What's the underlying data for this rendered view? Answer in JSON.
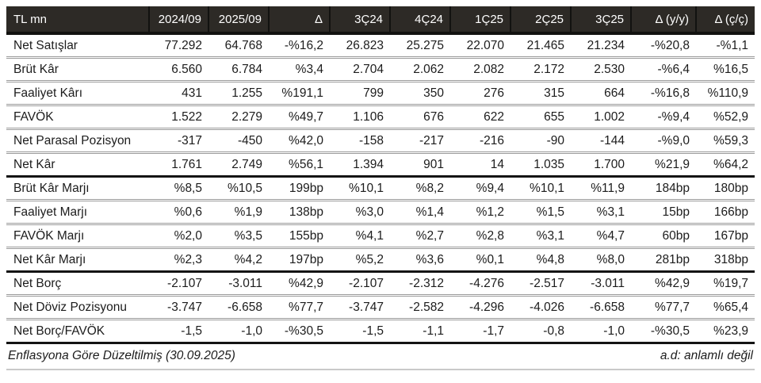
{
  "table": {
    "unit_label": "TL mn",
    "columns": [
      "TL mn",
      "2024/09",
      "2025/09",
      "Δ",
      "3Ç24",
      "4Ç24",
      "1Ç25",
      "2Ç25",
      "3Ç25",
      "Δ (y/y)",
      "Δ (ç/ç)"
    ],
    "sections": [
      {
        "name": "income-statement",
        "rows": [
          {
            "label": "Net Satışlar",
            "values": [
              "77.292",
              "64.768",
              "-%16,2",
              "26.823",
              "25.275",
              "22.070",
              "21.465",
              "21.234",
              "-%20,8",
              "-%1,1"
            ]
          },
          {
            "label": "Brüt Kâr",
            "values": [
              "6.560",
              "6.784",
              "%3,4",
              "2.704",
              "2.062",
              "2.082",
              "2.172",
              "2.530",
              "-%6,4",
              "%16,5"
            ]
          },
          {
            "label": "Faaliyet Kârı",
            "values": [
              "431",
              "1.255",
              "%191,1",
              "799",
              "350",
              "276",
              "315",
              "664",
              "-%16,8",
              "%110,9"
            ]
          },
          {
            "label": "FAVÖK",
            "values": [
              "1.522",
              "2.279",
              "%49,7",
              "1.106",
              "676",
              "622",
              "655",
              "1.002",
              "-%9,4",
              "%52,9"
            ]
          },
          {
            "label": "Net Parasal Pozisyon",
            "values": [
              "-317",
              "-450",
              "%42,0",
              "-158",
              "-217",
              "-216",
              "-90",
              "-144",
              "-%9,0",
              "%59,3"
            ]
          },
          {
            "label": "Net Kâr",
            "values": [
              "1.761",
              "2.749",
              "%56,1",
              "1.394",
              "901",
              "14",
              "1.035",
              "1.700",
              "%21,9",
              "%64,2"
            ]
          }
        ]
      },
      {
        "name": "margins",
        "rows": [
          {
            "label": "Brüt Kâr Marjı",
            "values": [
              "%8,5",
              "%10,5",
              "199bp",
              "%10,1",
              "%8,2",
              "%9,4",
              "%10,1",
              "%11,9",
              "184bp",
              "180bp"
            ]
          },
          {
            "label": "Faaliyet Marjı",
            "values": [
              "%0,6",
              "%1,9",
              "138bp",
              "%3,0",
              "%1,4",
              "%1,2",
              "%1,5",
              "%3,1",
              "15bp",
              "166bp"
            ]
          },
          {
            "label": "FAVÖK Marjı",
            "values": [
              "%2,0",
              "%3,5",
              "155bp",
              "%4,1",
              "%2,7",
              "%2,8",
              "%3,1",
              "%4,7",
              "60bp",
              "167bp"
            ]
          },
          {
            "label": "Net Kâr Marjı",
            "values": [
              "%2,3",
              "%4,2",
              "197bp",
              "%5,2",
              "%3,6",
              "%0,1",
              "%4,8",
              "%8,0",
              "281bp",
              "318bp"
            ]
          }
        ]
      },
      {
        "name": "balance-sheet",
        "rows": [
          {
            "label": "Net Borç",
            "values": [
              "-2.107",
              "-3.011",
              "%42,9",
              "-2.107",
              "-2.312",
              "-4.276",
              "-2.517",
              "-3.011",
              "%42,9",
              "%19,7"
            ]
          },
          {
            "label": "Net Döviz Pozisyonu",
            "values": [
              "-3.747",
              "-6.658",
              "%77,7",
              "-3.747",
              "-2.582",
              "-4.296",
              "-4.026",
              "-6.658",
              "%77,7",
              "%65,4"
            ]
          },
          {
            "label": "Net Borç/FAVÖK",
            "values": [
              "-1,5",
              "-1,0",
              "-%30,5",
              "-1,5",
              "-1,1",
              "-1,7",
              "-0,8",
              "-1,0",
              "-%30,5",
              "%23,9"
            ]
          }
        ]
      }
    ],
    "footer_left": "Enflasyona Göre Düzeltilmiş (30.09.2025)",
    "footer_right": "a.d: anlamlı değil"
  },
  "colors": {
    "header_bg": "#2d2a26",
    "header_text": "#ffffff",
    "body_text": "#1c1c1c",
    "row_divider": "#9b9b9b",
    "section_divider": "#141414",
    "footer_rule": "#c9c9c9"
  }
}
